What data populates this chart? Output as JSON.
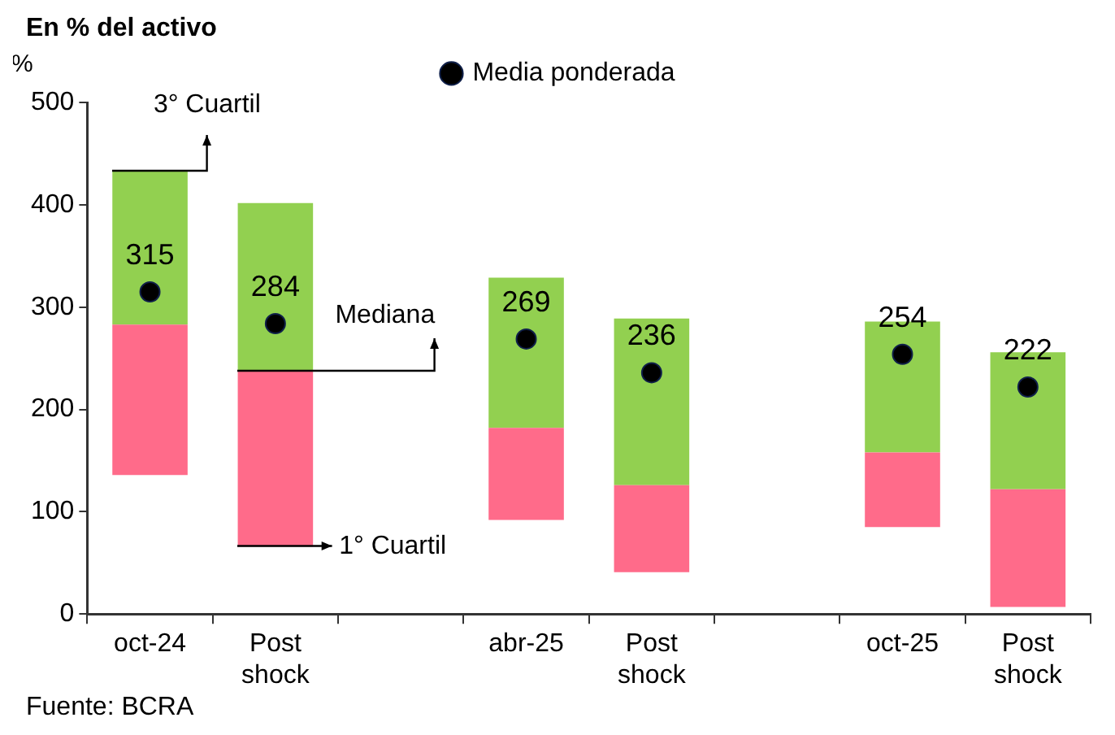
{
  "chart_data": {
    "type": "bar",
    "title": "En % del activo",
    "ylabel": "%",
    "categories": [
      "oct-24",
      "Post shock",
      null,
      "abr-25",
      "Post shock",
      null,
      "oct-25",
      "Post shock"
    ],
    "series": [
      {
        "color": "#ff6b8a",
        "base": [
          136,
          66,
          null,
          92,
          41,
          null,
          85,
          7
        ],
        "values": [
          147,
          172,
          null,
          90,
          85,
          null,
          73,
          115
        ]
      },
      {
        "color": "#92d050",
        "base": [
          283,
          238,
          null,
          182,
          126,
          null,
          158,
          122
        ],
        "values": [
          151,
          164,
          null,
          147,
          163,
          null,
          128,
          134
        ]
      },
      {
        "type": "scatter",
        "name": "Media ponderada",
        "color": "#000000",
        "values": [
          315,
          284,
          null,
          269,
          236,
          null,
          254,
          222
        ],
        "value_labels": [
          "315",
          "284",
          null,
          "269",
          "236",
          null,
          "254",
          "222"
        ]
      }
    ],
    "ylim": [
      0,
      500
    ],
    "yticks": [
      0,
      100,
      200,
      300,
      400,
      500
    ],
    "grid": false,
    "legend": "top",
    "marker": "circle",
    "annotations": [
      {
        "text": "3° Cuartil",
        "x": "oct-24",
        "y": 434
      },
      {
        "text": "Mediana",
        "x": "Post shock",
        "y": 238
      },
      {
        "text": "1° Cuartil",
        "x": "Post shock",
        "y": 66
      },
      "Fuente: BCRA"
    ]
  }
}
